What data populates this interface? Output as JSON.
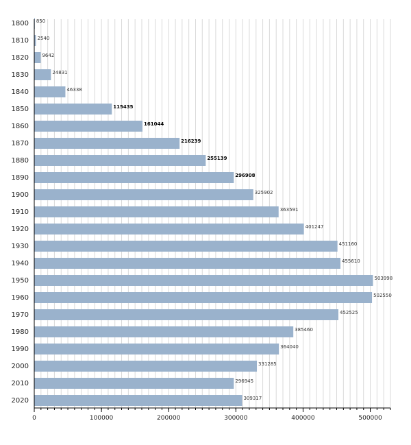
{
  "chart_data": {
    "type": "bar",
    "orientation": "horizontal",
    "title": "",
    "xlabel": "",
    "ylabel": "",
    "categories": [
      "1800",
      "1810",
      "1820",
      "1830",
      "1840",
      "1850",
      "1860",
      "1870",
      "1880",
      "1890",
      "1900",
      "1910",
      "1920",
      "1930",
      "1940",
      "1950",
      "1960",
      "1970",
      "1980",
      "1990",
      "2000",
      "2010",
      "2020"
    ],
    "values": [
      850,
      2540,
      9642,
      24831,
      46338,
      115435,
      161044,
      216239,
      255139,
      296908,
      325902,
      363591,
      401247,
      451160,
      455610,
      503998,
      502550,
      452525,
      385460,
      364040,
      331285,
      296945,
      309317
    ],
    "value_labels": [
      "850",
      "2540",
      "9642",
      "24831",
      "46338",
      "115435",
      "161044",
      "216239",
      "255139",
      "296908",
      "325902",
      "363591",
      "401247",
      "451160",
      "455610",
      "503998",
      "502550",
      "452525",
      "385460",
      "364040",
      "331285",
      "296945",
      "309317"
    ],
    "bold_value_labels": [
      "115435",
      "161044",
      "216239",
      "255139",
      "296908"
    ],
    "xlim": [
      0,
      530000
    ],
    "x_ticks": [
      0,
      100000,
      200000,
      300000,
      400000,
      500000
    ],
    "x_tick_labels": [
      "0",
      "100000",
      "200000",
      "300000",
      "400000",
      "500000"
    ],
    "minor_grid_step": 10000,
    "grid": true,
    "legend": "none",
    "bar_color": "#9ab2cc",
    "grid_color": "#d9d9d9"
  }
}
